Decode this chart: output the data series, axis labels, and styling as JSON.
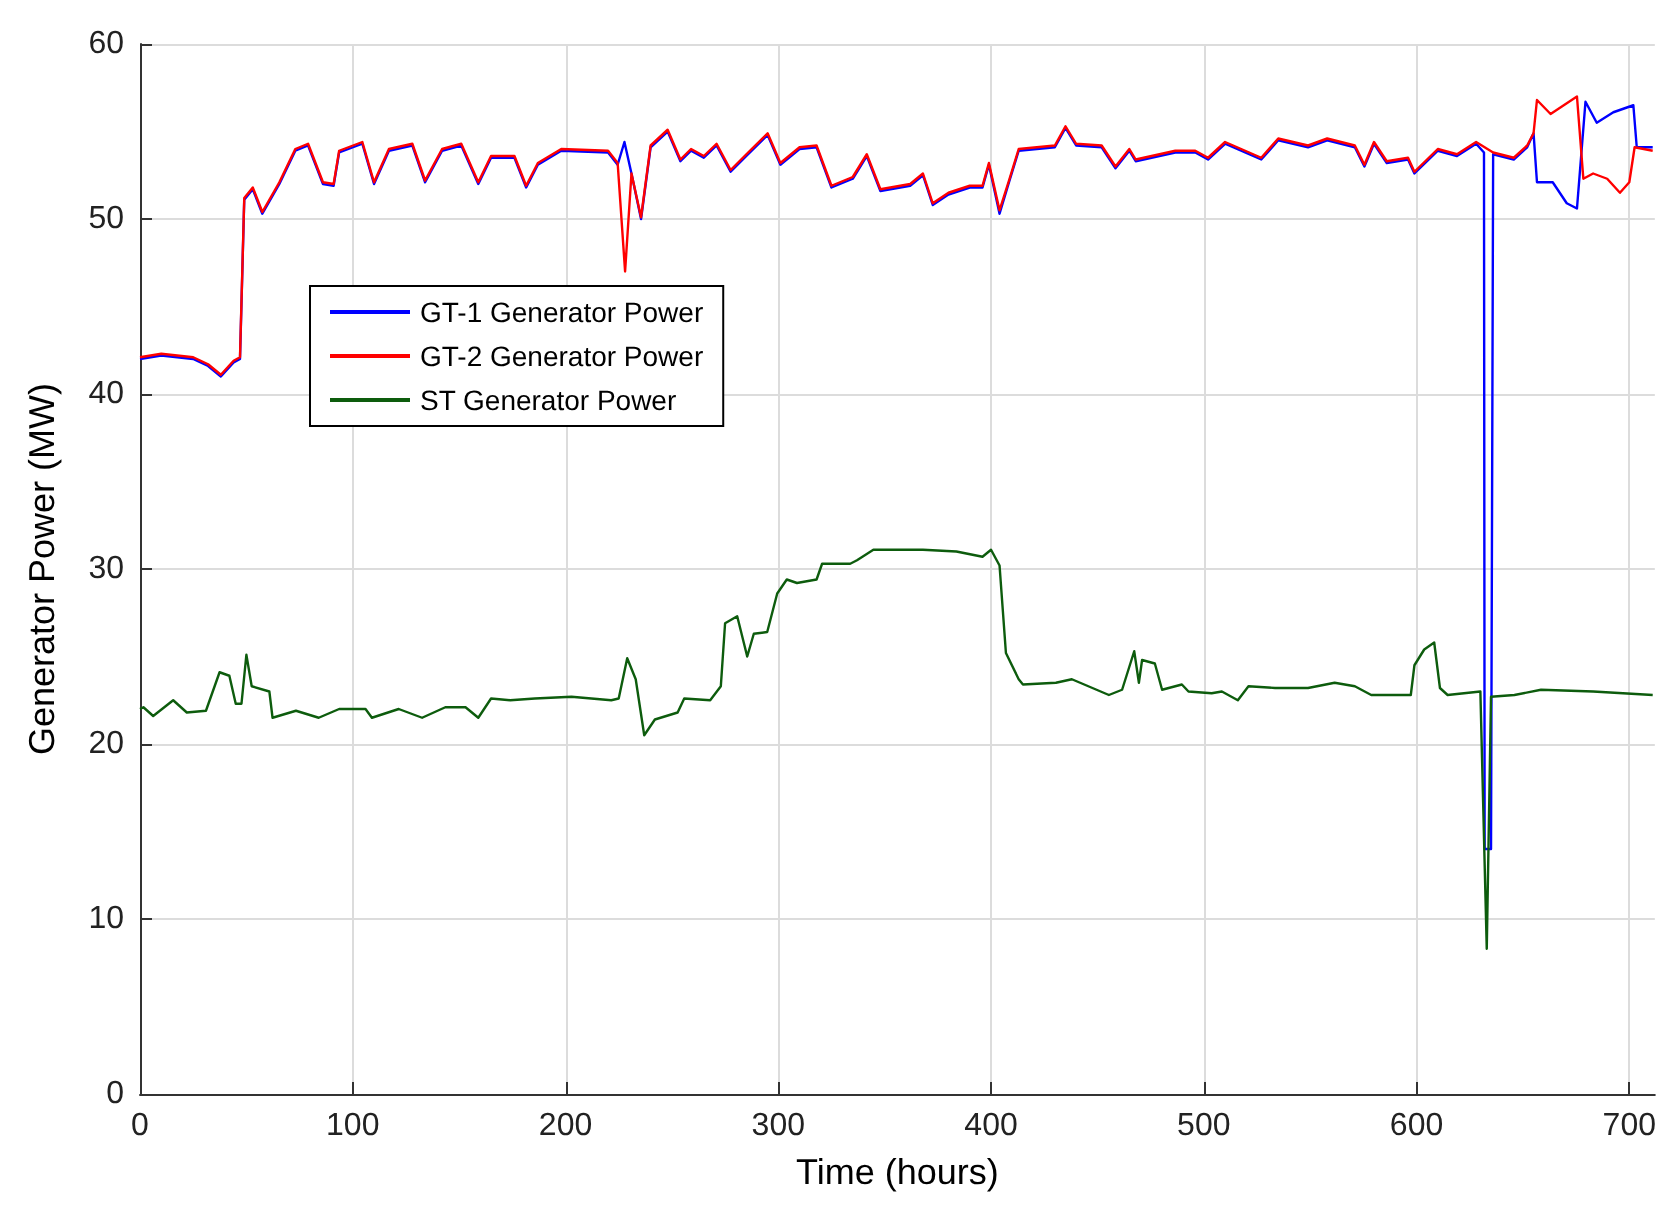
{
  "chart_data": {
    "type": "line",
    "xlabel": "Time (hours)",
    "ylabel": "Generator Power (MW)",
    "xlim": [
      0,
      712
    ],
    "ylim": [
      0,
      60
    ],
    "xticks": [
      0,
      100,
      200,
      300,
      400,
      500,
      600,
      700
    ],
    "yticks": [
      0,
      10,
      20,
      30,
      40,
      50,
      60
    ],
    "grid": true,
    "legend": "top left",
    "marker": "none",
    "line_style": "solid",
    "series": [
      {
        "name": "GT-1 Generator Power",
        "color": "#0000ff",
        "x": [
          0,
          10,
          25,
          32,
          38,
          44,
          47,
          49,
          53,
          57.5,
          65.5,
          73,
          79,
          86,
          91,
          93.6,
          104.5,
          110,
          117,
          128,
          134,
          142,
          151,
          159,
          165,
          176,
          181.5,
          187,
          198,
          220,
          224.5,
          227.7,
          231,
          235.5,
          240,
          248,
          254,
          259,
          265,
          271,
          277.6,
          285,
          295,
          301,
          310,
          318,
          325,
          335,
          341.6,
          348,
          362,
          368,
          372.6,
          380,
          390,
          396,
          399,
          404,
          408.7,
          413,
          430,
          435,
          440,
          452,
          458.5,
          465,
          468,
          486.6,
          496,
          502,
          510,
          527,
          535,
          549,
          558,
          571,
          575.5,
          580,
          586,
          596,
          599,
          610,
          619,
          628,
          631.7,
          632,
          635,
          636,
          645.7,
          652,
          655,
          656.6,
          664,
          670.6,
          675.4,
          679.4,
          684.7,
          692.5,
          701.9,
          703.5,
          711
        ],
        "values": [
          42,
          42.2,
          42,
          41.6,
          41,
          41.8,
          42,
          51.1,
          51.7,
          50.3,
          52,
          53.9,
          54.2,
          52,
          51.9,
          53.8,
          54.3,
          52,
          53.9,
          54.2,
          52.1,
          53.9,
          54.2,
          52,
          53.5,
          53.5,
          51.8,
          53.1,
          53.9,
          53.8,
          53.1,
          54.4,
          52.6,
          50,
          54.1,
          55,
          53.3,
          53.9,
          53.5,
          54.2,
          52.7,
          53.6,
          54.8,
          53.1,
          54,
          54.1,
          51.8,
          52.3,
          53.6,
          51.6,
          51.9,
          52.5,
          50.8,
          51.4,
          51.8,
          51.8,
          53.1,
          50.3,
          52.2,
          53.9,
          54.1,
          55.2,
          54.2,
          54.1,
          52.9,
          53.9,
          53.3,
          53.8,
          53.8,
          53.4,
          54.3,
          53.4,
          54.5,
          54.1,
          54.5,
          54.1,
          53,
          54.3,
          53.2,
          53.4,
          52.6,
          53.9,
          53.6,
          54.3,
          53.8,
          14,
          14,
          53.7,
          53.4,
          54.1,
          54.9,
          52.1,
          52.1,
          50.9,
          50.6,
          56.7,
          55.5,
          56.1,
          56.5,
          54.1,
          54.1
        ]
      },
      {
        "name": "GT-2 Generator Power",
        "color": "#ff0000",
        "x": [
          0,
          10,
          25,
          32,
          38,
          44,
          47,
          49,
          53,
          57.5,
          65.5,
          73,
          79,
          86,
          91,
          93.6,
          104.5,
          110,
          117,
          128,
          134,
          142,
          151,
          159,
          165,
          176,
          181.5,
          187,
          198,
          220,
          224.5,
          228,
          231,
          235.5,
          240,
          248,
          254,
          259,
          265,
          271,
          277.6,
          285,
          295,
          301,
          310,
          318,
          325,
          335,
          341.6,
          348,
          362,
          368,
          372.6,
          380,
          390,
          396,
          399,
          404,
          408.7,
          413,
          430,
          435,
          440,
          452,
          458.5,
          465,
          468,
          486.6,
          496,
          502,
          510,
          527,
          535,
          549,
          558,
          571,
          575.5,
          580,
          586,
          596,
          599,
          610,
          619,
          628,
          636,
          645.7,
          652,
          655,
          656.6,
          663,
          675.4,
          678.4,
          683,
          689.6,
          695.6,
          700,
          702.5,
          711
        ],
        "values": [
          42.1,
          42.3,
          42.1,
          41.7,
          41.1,
          41.9,
          42.1,
          51.2,
          51.8,
          50.4,
          52.1,
          54,
          54.3,
          52.1,
          52,
          53.9,
          54.4,
          52.1,
          54,
          54.3,
          52.2,
          54,
          54.3,
          52.1,
          53.6,
          53.6,
          51.9,
          53.2,
          54,
          53.9,
          53.2,
          47,
          52.6,
          50.1,
          54.2,
          55.1,
          53.4,
          54,
          53.6,
          54.3,
          52.8,
          53.7,
          54.9,
          53.2,
          54.1,
          54.2,
          51.9,
          52.4,
          53.7,
          51.7,
          52,
          52.6,
          50.9,
          51.5,
          51.9,
          51.9,
          53.2,
          50.5,
          52.3,
          54,
          54.2,
          55.3,
          54.3,
          54.2,
          53,
          54,
          53.4,
          53.9,
          53.9,
          53.5,
          54.4,
          53.5,
          54.6,
          54.2,
          54.6,
          54.2,
          53.1,
          54.4,
          53.3,
          53.5,
          52.7,
          54,
          53.7,
          54.4,
          53.8,
          53.5,
          54.2,
          54.9,
          56.8,
          56,
          57,
          52.3,
          52.6,
          52.3,
          51.5,
          52.1,
          54.1,
          53.9
        ]
      },
      {
        "name": "ST Generator Power",
        "color": "#0d5c0d",
        "x": [
          0,
          1.6,
          6.2,
          15.6,
          22,
          31,
          37.4,
          42,
          45,
          47.7,
          50,
          52.5,
          60.8,
          62.3,
          73.3,
          84,
          93.6,
          106,
          109,
          121.6,
          132.6,
          143.5,
          153,
          159,
          165,
          174,
          185.6,
          202.8,
          221.5,
          225,
          229,
          233,
          237,
          242,
          252.7,
          255.8,
          268,
          273,
          275,
          280.7,
          285.4,
          288.5,
          294.8,
          299.5,
          304,
          308.8,
          318,
          320.6,
          333.8,
          337,
          344.7,
          368,
          383.7,
          396,
          400,
          404,
          407,
          413,
          415,
          430.5,
          438,
          455.4,
          461.6,
          467.3,
          469.5,
          471,
          477,
          480.4,
          489.7,
          492.8,
          503.7,
          508.5,
          516,
          521,
          533.5,
          549,
          561.5,
          571,
          578.7,
          583,
          597.3,
          599,
          603.6,
          608.3,
          611,
          614.6,
          630,
          633,
          635,
          646,
          658.5,
          683,
          711
        ],
        "values": [
          22,
          22.1,
          21.6,
          22.5,
          21.8,
          21.9,
          24.1,
          23.9,
          22.3,
          22.3,
          25.1,
          23.3,
          23,
          21.5,
          21.9,
          21.5,
          22,
          22,
          21.5,
          22,
          21.5,
          22.1,
          22.1,
          21.5,
          22.6,
          22.5,
          22.6,
          22.7,
          22.5,
          22.6,
          24.9,
          23.7,
          20.5,
          21.4,
          21.8,
          22.6,
          22.5,
          23.3,
          26.9,
          27.3,
          25,
          26.3,
          26.4,
          28.6,
          29.4,
          29.2,
          29.4,
          30.3,
          30.3,
          30.5,
          31.1,
          31.1,
          31,
          30.7,
          31.1,
          30.2,
          25.2,
          23.7,
          23.4,
          23.5,
          23.7,
          22.8,
          23.1,
          25.3,
          23.5,
          24.8,
          24.6,
          23.1,
          23.4,
          23,
          22.9,
          23,
          22.5,
          23.3,
          23.2,
          23.2,
          23.5,
          23.3,
          22.8,
          22.8,
          22.8,
          24.5,
          25.4,
          25.8,
          23.2,
          22.8,
          23,
          8.3,
          22.7,
          22.8,
          23.1,
          23,
          22.8
        ]
      }
    ]
  }
}
